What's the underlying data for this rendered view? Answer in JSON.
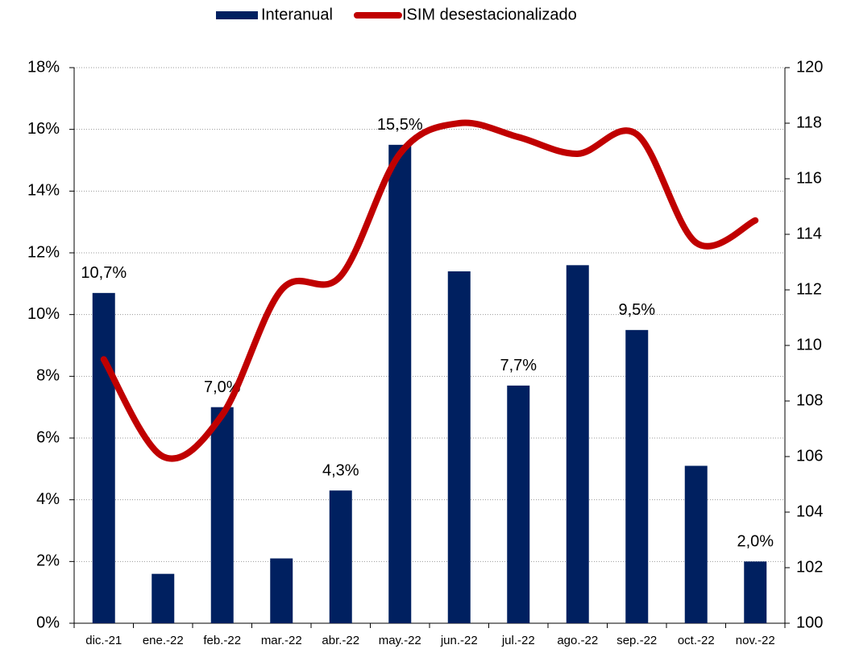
{
  "chart_data": {
    "type": "bar-line",
    "categories": [
      "dic.-21",
      "ene.-22",
      "feb.-22",
      "mar.-22",
      "abr.-22",
      "may.-22",
      "jun.-22",
      "jul.-22",
      "ago.-22",
      "sep.-22",
      "oct.-22",
      "nov.-22"
    ],
    "series": [
      {
        "name": "Interanual",
        "type": "bar",
        "color": "#002060",
        "axis": "y",
        "values": [
          10.7,
          1.6,
          7.0,
          2.1,
          4.3,
          15.5,
          11.4,
          7.7,
          11.6,
          9.5,
          5.1,
          2.0
        ],
        "value_labels": [
          "10,7%",
          null,
          "7,0%",
          null,
          "4,3%",
          "15,5%",
          null,
          "7,7%",
          null,
          "9,5%",
          null,
          "2,0%"
        ]
      },
      {
        "name": "ISIM desestacionalizado",
        "type": "line",
        "color": "#c00000",
        "axis": "y2",
        "values": [
          109.5,
          106.0,
          107.5,
          112.0,
          112.5,
          116.9,
          118.0,
          117.5,
          116.9,
          117.6,
          113.7,
          114.5
        ]
      }
    ],
    "ylim": [
      0,
      18
    ],
    "yticks": [
      {
        "value": 0,
        "label": "0%"
      },
      {
        "value": 2,
        "label": "2%"
      },
      {
        "value": 4,
        "label": "4%"
      },
      {
        "value": 6,
        "label": "6%"
      },
      {
        "value": 8,
        "label": "8%"
      },
      {
        "value": 10,
        "label": "10%"
      },
      {
        "value": 12,
        "label": "12%"
      },
      {
        "value": 14,
        "label": "14%"
      },
      {
        "value": 16,
        "label": "16%"
      },
      {
        "value": 18,
        "label": "18%"
      }
    ],
    "y2lim": [
      100,
      120
    ],
    "y2ticks": [
      100,
      102,
      104,
      106,
      108,
      110,
      112,
      114,
      116,
      118,
      120
    ],
    "grid": true,
    "legend": "top"
  }
}
